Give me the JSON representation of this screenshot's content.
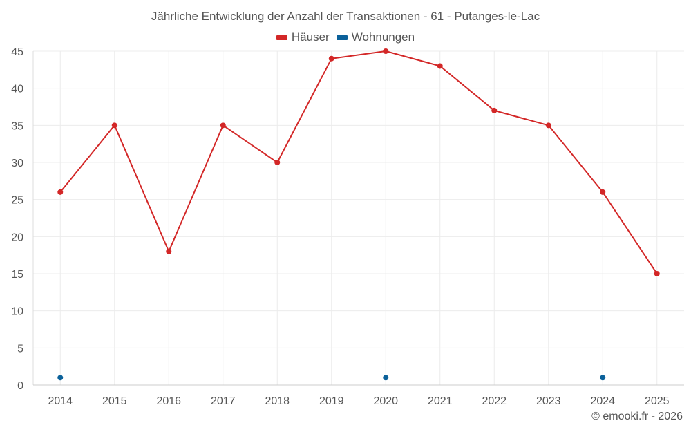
{
  "chart_data": {
    "type": "line",
    "title": "Jährliche Entwicklung der Anzahl der Transaktionen - 61 - Putanges-le-Lac",
    "x": [
      "2014",
      "2015",
      "2016",
      "2017",
      "2018",
      "2019",
      "2020",
      "2021",
      "2022",
      "2023",
      "2024",
      "2025"
    ],
    "yticks": [
      0,
      5,
      10,
      15,
      20,
      25,
      30,
      35,
      40,
      45
    ],
    "ylim": [
      0,
      45
    ],
    "grid": true,
    "legend_position": "top-center",
    "series": [
      {
        "name": "Häuser",
        "color": "#d32727",
        "style": "line-with-markers",
        "values": [
          26,
          35,
          18,
          35,
          30,
          44,
          45,
          43,
          37,
          35,
          26,
          15
        ]
      },
      {
        "name": "Wohnungen",
        "color": "#0b619a",
        "style": "markers-only",
        "values": [
          1,
          null,
          null,
          null,
          null,
          null,
          1,
          null,
          null,
          null,
          1,
          null
        ]
      }
    ]
  },
  "footer": {
    "copyright": "© emooki.fr - 2026"
  }
}
